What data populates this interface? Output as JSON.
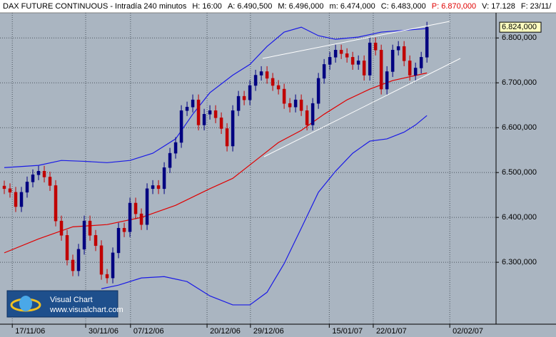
{
  "chart_data": {
    "type": "candlestick",
    "title": "DAX FUTURE CONTINUOUS - Intradía 240 minutos",
    "info": [
      {
        "text": "H: 16:00",
        "color": "#000000"
      },
      {
        "text": "A: 6.490,500",
        "color": "#000000"
      },
      {
        "text": "M: 6.496,000",
        "color": "#000000"
      },
      {
        "text": "m: 6.474,000",
        "color": "#000000"
      },
      {
        "text": "C: 6.483,000",
        "color": "#000000"
      },
      {
        "text": "P: 6.870,000",
        "color": "#e00000"
      },
      {
        "text": "V: 17.128",
        "color": "#000000"
      },
      {
        "text": "F: 23/11/",
        "color": "#000000"
      }
    ],
    "open": [
      6470,
      6464,
      6456,
      6424,
      6456,
      6479,
      6495,
      6503,
      6490,
      6471,
      6392,
      6360,
      6305,
      6281,
      6329,
      6392,
      6360,
      6337,
      6273,
      6265,
      6321,
      6376,
      6368,
      6432,
      6408,
      6384,
      6464,
      6471,
      6464,
      6511,
      6543,
      6567,
      6638,
      6646,
      6662,
      6606,
      6630,
      6638,
      6622,
      6598,
      6559,
      6638,
      6670,
      6662,
      6694,
      6717,
      6725,
      6710,
      6694,
      6686,
      6654,
      6646,
      6662,
      6638,
      6606,
      6654,
      6710,
      6741,
      6757,
      6773,
      6765,
      6757,
      6741,
      6749,
      6717,
      6789,
      6773,
      6686,
      6725,
      6773,
      6781,
      6749,
      6717,
      6733,
      6757
    ],
    "high": [
      6482,
      6476,
      6468,
      6468,
      6491,
      6507,
      6515,
      6515,
      6502,
      6483,
      6404,
      6372,
      6317,
      6341,
      6404,
      6404,
      6372,
      6349,
      6285,
      6333,
      6388,
      6388,
      6444,
      6444,
      6420,
      6476,
      6483,
      6483,
      6523,
      6555,
      6579,
      6650,
      6658,
      6674,
      6674,
      6642,
      6650,
      6650,
      6634,
      6610,
      6650,
      6682,
      6682,
      6706,
      6729,
      6737,
      6737,
      6722,
      6706,
      6698,
      6666,
      6674,
      6674,
      6650,
      6666,
      6722,
      6753,
      6769,
      6785,
      6785,
      6777,
      6769,
      6761,
      6761,
      6801,
      6801,
      6785,
      6737,
      6785,
      6793,
      6793,
      6761,
      6745,
      6769,
      6836
    ],
    "low": [
      6452,
      6444,
      6412,
      6412,
      6444,
      6467,
      6483,
      6478,
      6459,
      6380,
      6348,
      6293,
      6269,
      6269,
      6317,
      6348,
      6325,
      6261,
      6253,
      6253,
      6309,
      6356,
      6356,
      6396,
      6372,
      6372,
      6452,
      6452,
      6452,
      6499,
      6531,
      6555,
      6626,
      6634,
      6594,
      6594,
      6618,
      6610,
      6586,
      6547,
      6547,
      6626,
      6650,
      6650,
      6682,
      6705,
      6698,
      6682,
      6674,
      6642,
      6634,
      6634,
      6626,
      6594,
      6594,
      6642,
      6698,
      6729,
      6745,
      6753,
      6745,
      6729,
      6729,
      6705,
      6705,
      6761,
      6674,
      6674,
      6713,
      6761,
      6737,
      6705,
      6705,
      6721,
      6745
    ],
    "close": [
      6464,
      6456,
      6424,
      6456,
      6479,
      6495,
      6503,
      6490,
      6471,
      6392,
      6360,
      6305,
      6281,
      6329,
      6392,
      6360,
      6337,
      6273,
      6265,
      6321,
      6376,
      6368,
      6432,
      6408,
      6384,
      6464,
      6471,
      6464,
      6511,
      6543,
      6567,
      6638,
      6646,
      6662,
      6606,
      6630,
      6638,
      6622,
      6598,
      6559,
      6638,
      6670,
      6662,
      6694,
      6717,
      6725,
      6710,
      6694,
      6686,
      6654,
      6646,
      6662,
      6638,
      6606,
      6654,
      6710,
      6741,
      6757,
      6773,
      6765,
      6757,
      6741,
      6749,
      6717,
      6789,
      6773,
      6686,
      6725,
      6773,
      6781,
      6749,
      6717,
      6733,
      6757,
      6824
    ],
    "up_color": "#000080",
    "down_color": "#c00000",
    "series": [
      {
        "color": "#e00000",
        "x": [
          0,
          6,
          12,
          18,
          24,
          30,
          36,
          40,
          44,
          48,
          52,
          56,
          60,
          64,
          68,
          74
        ],
        "values": [
          6321,
          6352,
          6379,
          6384,
          6400,
          6427,
          6464,
          6487,
          6527,
          6567,
          6594,
          6630,
          6662,
          6686,
          6705,
          6722
        ]
      },
      {
        "color": "#1a1ae6",
        "x": [
          0,
          6,
          10,
          14,
          18,
          22,
          26,
          30,
          33,
          36,
          40,
          43,
          46,
          49,
          52,
          55,
          58,
          62,
          66,
          70,
          74
        ],
        "values": [
          6511,
          6516,
          6527,
          6525,
          6522,
          6527,
          6543,
          6575,
          6630,
          6678,
          6717,
          6741,
          6781,
          6813,
          6824,
          6805,
          6797,
          6802,
          6813,
          6817,
          6821
        ]
      },
      {
        "color": "#1a1ae6",
        "x": [
          17,
          20,
          24,
          28,
          32,
          36,
          40,
          43,
          46,
          49,
          52,
          55,
          58,
          61,
          64,
          67,
          70,
          72,
          74
        ],
        "values": [
          6241,
          6249,
          6265,
          6268,
          6257,
          6225,
          6205,
          6205,
          6233,
          6297,
          6376,
          6456,
          6503,
          6543,
          6570,
          6575,
          6590,
          6606,
          6627
        ]
      }
    ],
    "last_price": {
      "value": 6824,
      "label": "6.824,000"
    },
    "xlim": [
      -0.75,
      86.1
    ],
    "xticks": [
      {
        "value": 1.4,
        "label": "17/11/06"
      },
      {
        "value": 14.25,
        "label": "30/11/06"
      },
      {
        "value": 22.1,
        "label": "07/12/06"
      },
      {
        "value": 35.5,
        "label": "20/12/06"
      },
      {
        "value": 43.1,
        "label": "29/12/06"
      },
      {
        "value": 56.9,
        "label": "15/01/07"
      },
      {
        "value": 64.6,
        "label": "22/01/07"
      },
      {
        "value": 78,
        "label": "02/02/07"
      }
    ],
    "ylim": [
      6162,
      6856
    ],
    "yticks": [
      {
        "value": 6300,
        "label": "6.300,000"
      },
      {
        "value": 6400,
        "label": "6.400,000"
      },
      {
        "value": 6500,
        "label": "6.500,000"
      },
      {
        "value": 6600,
        "label": "6.600,000"
      },
      {
        "value": 6700,
        "label": "6.700,000"
      },
      {
        "value": 6800,
        "label": "6.800,000"
      }
    ],
    "grid": true,
    "logo": {
      "title": "Visual Chart",
      "url": "www.visualchart.com"
    }
  }
}
